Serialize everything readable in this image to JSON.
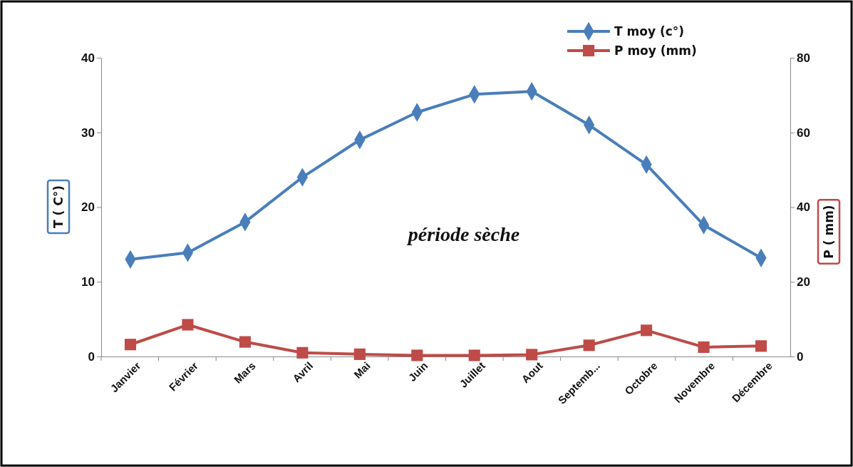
{
  "chart_data": {
    "type": "line",
    "categories": [
      "Janvier",
      "Février",
      "Mars",
      "Avril",
      "Mai",
      "Juin",
      "Juillet",
      "Aout",
      "Septemb...",
      "Octobre",
      "Novembre",
      "Décembre"
    ],
    "ylabel": "T ( C°)",
    "y2label": "P ( mm)",
    "annotations": [
      "période sèche"
    ],
    "ylim": [
      0,
      40
    ],
    "yticks": [
      0,
      10,
      20,
      30,
      40
    ],
    "y2lim": [
      0,
      80
    ],
    "y2ticks": [
      0,
      20,
      40,
      60,
      80
    ],
    "grid": false,
    "legend": "top right",
    "series": [
      {
        "name": "T moy (c°)",
        "color": "#4a7ebb",
        "marker": "diamond",
        "values": [
          13.0,
          13.9,
          18.0,
          24.0,
          29.0,
          32.7,
          35.1,
          35.5,
          31.0,
          25.7,
          17.6,
          13.2
        ]
      },
      {
        "name": "P moy (mm)",
        "color": "#be4b48",
        "marker": "square",
        "axis": "y2",
        "values": [
          3.2,
          8.5,
          3.9,
          1.0,
          0.6,
          0.3,
          0.3,
          0.5,
          3.0,
          7.0,
          2.5,
          2.8
        ]
      }
    ]
  }
}
